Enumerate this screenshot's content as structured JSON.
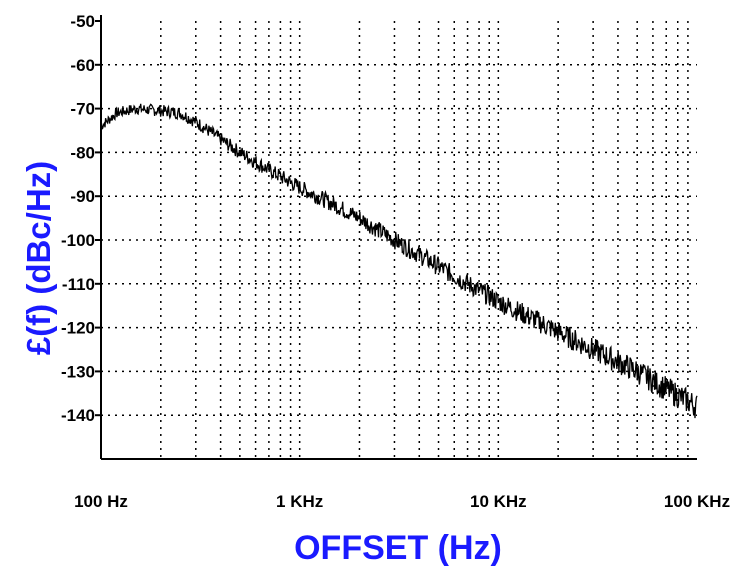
{
  "chart_data": {
    "type": "line",
    "title": "",
    "xlabel": "OFFSET (Hz)",
    "ylabel": "£(f) (dBc/Hz)",
    "x_scale": "log",
    "xlim": [
      100,
      100000
    ],
    "ylim": [
      -150,
      -50
    ],
    "grid": true,
    "x_ticks": [
      {
        "value": 100,
        "label": "100 Hz"
      },
      {
        "value": 1000,
        "label": "1 KHz"
      },
      {
        "value": 10000,
        "label": "10 KHz"
      },
      {
        "value": 100000,
        "label": "100 KHz"
      }
    ],
    "y_ticks": [
      {
        "value": -50,
        "label": "-50"
      },
      {
        "value": -60,
        "label": "-60"
      },
      {
        "value": -70,
        "label": "-70"
      },
      {
        "value": -80,
        "label": "-80"
      },
      {
        "value": -90,
        "label": "-90"
      },
      {
        "value": -100,
        "label": "-100"
      },
      {
        "value": -110,
        "label": "-110"
      },
      {
        "value": -120,
        "label": "-120"
      },
      {
        "value": -130,
        "label": "-130"
      },
      {
        "value": -140,
        "label": "-140"
      }
    ],
    "series": [
      {
        "color": "#000000",
        "x": [
          100,
          120,
          150,
          200,
          250,
          300,
          400,
          500,
          700,
          1000,
          1500,
          2000,
          3000,
          5000,
          7000,
          10000,
          15000,
          20000,
          30000,
          50000,
          70000,
          100000
        ],
        "y": [
          -74,
          -71,
          -70,
          -70.5,
          -71,
          -73,
          -77,
          -80,
          -84,
          -88,
          -92,
          -95,
          -100,
          -106,
          -110,
          -114,
          -118,
          -121,
          -125,
          -130,
          -134,
          -138
        ]
      }
    ]
  }
}
